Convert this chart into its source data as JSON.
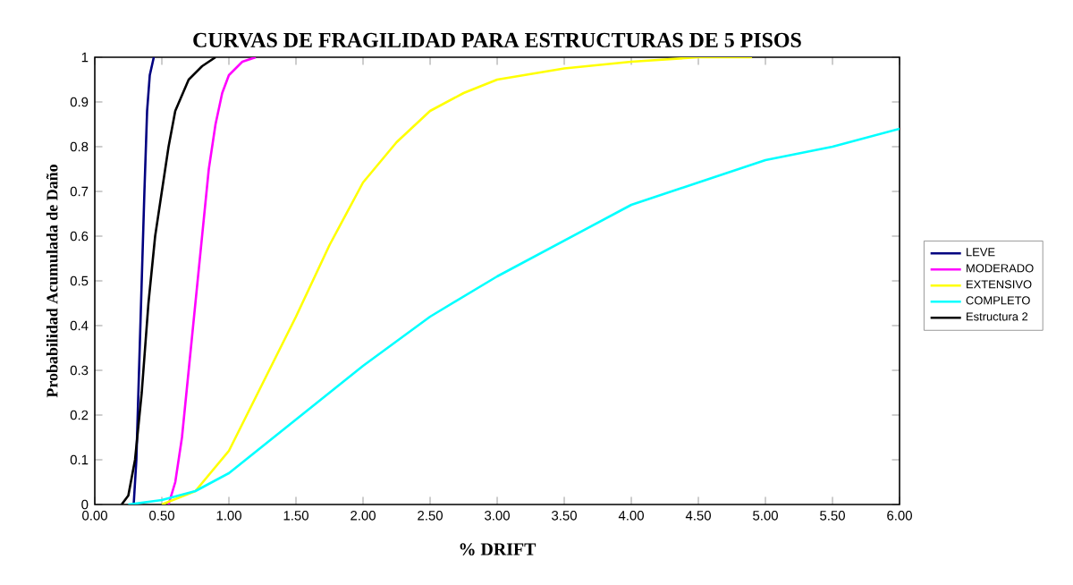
{
  "chart_data": {
    "type": "line",
    "title": "CURVAS DE FRAGILIDAD PARA ESTRUCTURAS DE 5 PISOS",
    "xlabel": "% DRIFT",
    "ylabel": "Probabilidad Acumulada de Daño",
    "xlim": [
      0,
      6
    ],
    "ylim": [
      0,
      1
    ],
    "xticks": [
      {
        "value": 0,
        "label": "0.00"
      },
      {
        "value": 0.5,
        "label": "0.50"
      },
      {
        "value": 1,
        "label": "1.00"
      },
      {
        "value": 1.5,
        "label": "1.50"
      },
      {
        "value": 2,
        "label": "2.00"
      },
      {
        "value": 2.5,
        "label": "2.50"
      },
      {
        "value": 3,
        "label": "3.00"
      },
      {
        "value": 3.5,
        "label": "3.50"
      },
      {
        "value": 4,
        "label": "4.00"
      },
      {
        "value": 4.5,
        "label": "4.50"
      },
      {
        "value": 5,
        "label": "5.00"
      },
      {
        "value": 5.5,
        "label": "5.50"
      },
      {
        "value": 6,
        "label": "6.00"
      }
    ],
    "yticks": [
      0,
      0.1,
      0.2,
      0.3,
      0.4,
      0.5,
      0.6,
      0.7,
      0.8,
      0.9,
      1
    ],
    "legend": "right",
    "grid": false,
    "marker": "none",
    "line_style": "solid",
    "series": [
      {
        "name": "LEVE",
        "color": "#000080",
        "x": [
          0.29,
          0.31,
          0.33,
          0.35,
          0.37,
          0.39,
          0.41,
          0.44
        ],
        "values": [
          0,
          0.1,
          0.3,
          0.5,
          0.7,
          0.88,
          0.96,
          1
        ]
      },
      {
        "name": "MODERADO",
        "color": "#ff00ff",
        "x": [
          0.55,
          0.6,
          0.65,
          0.7,
          0.75,
          0.8,
          0.85,
          0.9,
          0.95,
          1.0,
          1.1,
          1.2
        ],
        "values": [
          0,
          0.05,
          0.15,
          0.3,
          0.45,
          0.6,
          0.75,
          0.85,
          0.92,
          0.96,
          0.99,
          1
        ]
      },
      {
        "name": "EXTENSIVO",
        "color": "#ffff00",
        "x": [
          0.5,
          0.75,
          1.0,
          1.25,
          1.5,
          1.75,
          2.0,
          2.25,
          2.5,
          2.75,
          3.0,
          3.5,
          4.0,
          4.5,
          4.9
        ],
        "values": [
          0,
          0.03,
          0.12,
          0.27,
          0.42,
          0.58,
          0.72,
          0.81,
          0.88,
          0.92,
          0.95,
          0.975,
          0.99,
          1,
          1
        ]
      },
      {
        "name": "COMPLETO",
        "color": "#00ffff",
        "x": [
          0.25,
          0.5,
          0.75,
          1.0,
          1.25,
          1.5,
          1.75,
          2.0,
          2.5,
          3.0,
          3.5,
          4.0,
          4.5,
          5.0,
          5.5,
          6.0
        ],
        "values": [
          0,
          0.01,
          0.03,
          0.07,
          0.13,
          0.19,
          0.25,
          0.31,
          0.42,
          0.51,
          0.59,
          0.67,
          0.72,
          0.77,
          0.8,
          0.84
        ]
      },
      {
        "name": "Estructura 2",
        "color": "#000000",
        "x": [
          0.2,
          0.25,
          0.3,
          0.35,
          0.4,
          0.45,
          0.5,
          0.55,
          0.6,
          0.7,
          0.8,
          0.9
        ],
        "values": [
          0,
          0.02,
          0.1,
          0.25,
          0.45,
          0.6,
          0.7,
          0.8,
          0.88,
          0.95,
          0.98,
          1
        ]
      }
    ]
  }
}
